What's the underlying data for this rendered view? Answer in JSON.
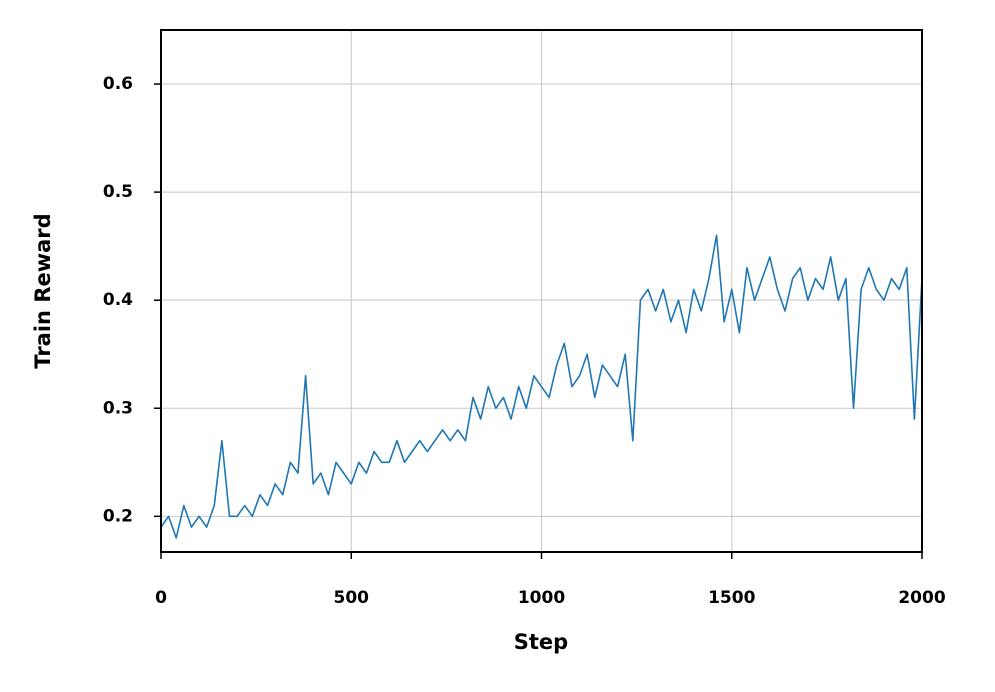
{
  "chart_data": {
    "type": "line",
    "xlabel": "Step",
    "ylabel": "Train Reward",
    "x": [
      0,
      20,
      40,
      60,
      80,
      100,
      120,
      140,
      160,
      180,
      200,
      220,
      240,
      260,
      280,
      300,
      320,
      340,
      360,
      380,
      400,
      420,
      440,
      460,
      480,
      500,
      520,
      540,
      560,
      580,
      600,
      620,
      640,
      660,
      680,
      700,
      720,
      740,
      760,
      780,
      800,
      820,
      840,
      860,
      880,
      900,
      920,
      940,
      960,
      980,
      1000,
      1020,
      1040,
      1060,
      1080,
      1100,
      1120,
      1140,
      1160,
      1180,
      1200,
      1220,
      1240,
      1260,
      1280,
      1300,
      1320,
      1340,
      1360,
      1380,
      1400,
      1420,
      1440,
      1460,
      1480,
      1500,
      1520,
      1540,
      1560,
      1580,
      1600,
      1620,
      1640,
      1660,
      1680,
      1700,
      1720,
      1740,
      1760,
      1780,
      1800,
      1820,
      1840,
      1860,
      1880,
      1900,
      1920,
      1940,
      1960,
      1980,
      2000
    ],
    "series": [
      {
        "color": "#1f77b4",
        "values": [
          0.19,
          0.2,
          0.18,
          0.21,
          0.19,
          0.2,
          0.19,
          0.21,
          0.27,
          0.2,
          0.2,
          0.21,
          0.2,
          0.22,
          0.21,
          0.23,
          0.22,
          0.25,
          0.24,
          0.33,
          0.23,
          0.24,
          0.22,
          0.25,
          0.24,
          0.23,
          0.25,
          0.24,
          0.26,
          0.25,
          0.25,
          0.27,
          0.25,
          0.26,
          0.27,
          0.26,
          0.27,
          0.28,
          0.27,
          0.28,
          0.27,
          0.31,
          0.29,
          0.32,
          0.3,
          0.31,
          0.29,
          0.32,
          0.3,
          0.33,
          0.32,
          0.31,
          0.34,
          0.36,
          0.32,
          0.33,
          0.35,
          0.31,
          0.34,
          0.33,
          0.32,
          0.35,
          0.27,
          0.4,
          0.41,
          0.39,
          0.41,
          0.38,
          0.4,
          0.37,
          0.41,
          0.39,
          0.42,
          0.46,
          0.38,
          0.41,
          0.37,
          0.43,
          0.4,
          0.42,
          0.44,
          0.41,
          0.39,
          0.42,
          0.43,
          0.4,
          0.42,
          0.41,
          0.44,
          0.4,
          0.42,
          0.3,
          0.41,
          0.43,
          0.41,
          0.4,
          0.42,
          0.41,
          0.43,
          0.29,
          0.42
        ]
      }
    ],
    "xlim": [
      0,
      2000
    ],
    "xticks": [
      0,
      500,
      1000,
      1500,
      2000
    ],
    "ylim": [
      0.167,
      0.65
    ],
    "yticks": [
      0.2,
      0.3,
      0.4,
      0.5,
      0.6
    ],
    "grid": true
  }
}
